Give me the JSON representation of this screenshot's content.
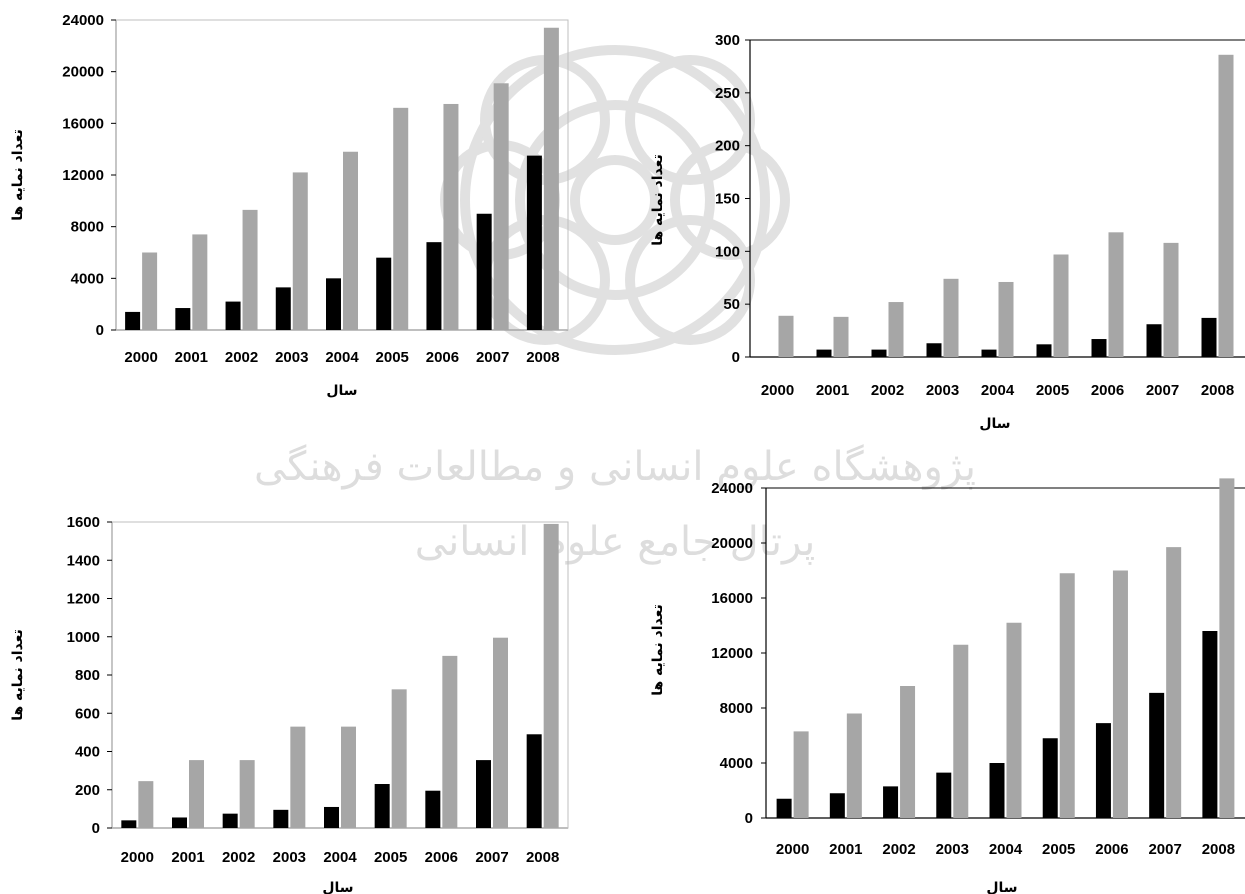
{
  "colors": {
    "series_1": "#000000",
    "series_2": "#a6a6a6",
    "watermark": "#d9d9d9"
  },
  "watermark": {
    "text_1": "پژوهشگاه علوم انسانی و مطالعات فرهنگی",
    "text_2": "پرتال جامع علوم انسانی"
  },
  "chart_data": [
    {
      "type": "bar",
      "xlabel": "سال",
      "ylabel": "تعداد نمایه ها",
      "ylim": [
        0,
        24000
      ],
      "yticks": [
        0,
        4000,
        8000,
        12000,
        16000,
        20000,
        24000
      ],
      "categories": [
        "2000",
        "2001",
        "2002",
        "2003",
        "2004",
        "2005",
        "2006",
        "2007",
        "2008"
      ],
      "series": [
        {
          "values": [
            1400,
            1700,
            2200,
            3300,
            4000,
            5600,
            6800,
            9000,
            13500
          ]
        },
        {
          "values": [
            6000,
            7400,
            9300,
            12200,
            13800,
            17200,
            17500,
            19100,
            23400
          ]
        }
      ]
    },
    {
      "type": "bar",
      "xlabel": "سال",
      "ylabel": "تعداد نمایه ها",
      "ylim": [
        0,
        300
      ],
      "yticks": [
        0,
        50,
        100,
        150,
        200,
        250,
        300
      ],
      "categories": [
        "2000",
        "2001",
        "2002",
        "2003",
        "2004",
        "2005",
        "2006",
        "2007",
        "2008"
      ],
      "series": [
        {
          "values": [
            0,
            7,
            7,
            13,
            7,
            12,
            17,
            31,
            37
          ]
        },
        {
          "values": [
            39,
            38,
            52,
            74,
            71,
            97,
            118,
            108,
            286
          ]
        }
      ]
    },
    {
      "type": "bar",
      "xlabel": "سال",
      "ylabel": "تعداد نمایه ها",
      "ylim": [
        0,
        1600
      ],
      "yticks": [
        0,
        200,
        400,
        600,
        800,
        1000,
        1200,
        1400,
        1600
      ],
      "categories": [
        "2000",
        "2001",
        "2002",
        "2003",
        "2004",
        "2005",
        "2006",
        "2007",
        "2008"
      ],
      "series": [
        {
          "values": [
            40,
            55,
            75,
            95,
            110,
            230,
            195,
            355,
            490
          ]
        },
        {
          "values": [
            245,
            355,
            355,
            530,
            530,
            725,
            900,
            995,
            1590
          ]
        }
      ]
    },
    {
      "type": "bar",
      "xlabel": "سال",
      "ylabel": "تعداد نمایه ها",
      "ylim": [
        0,
        24000
      ],
      "yticks": [
        0,
        4000,
        8000,
        12000,
        16000,
        20000,
        24000
      ],
      "categories": [
        "2000",
        "2001",
        "2002",
        "2003",
        "2004",
        "2005",
        "2006",
        "2007",
        "2008"
      ],
      "series": [
        {
          "values": [
            1400,
            1800,
            2300,
            3300,
            4000,
            5800,
            6900,
            9100,
            13600
          ]
        },
        {
          "values": [
            6300,
            7600,
            9600,
            12600,
            14200,
            17800,
            18000,
            19700,
            24700
          ]
        }
      ]
    }
  ]
}
